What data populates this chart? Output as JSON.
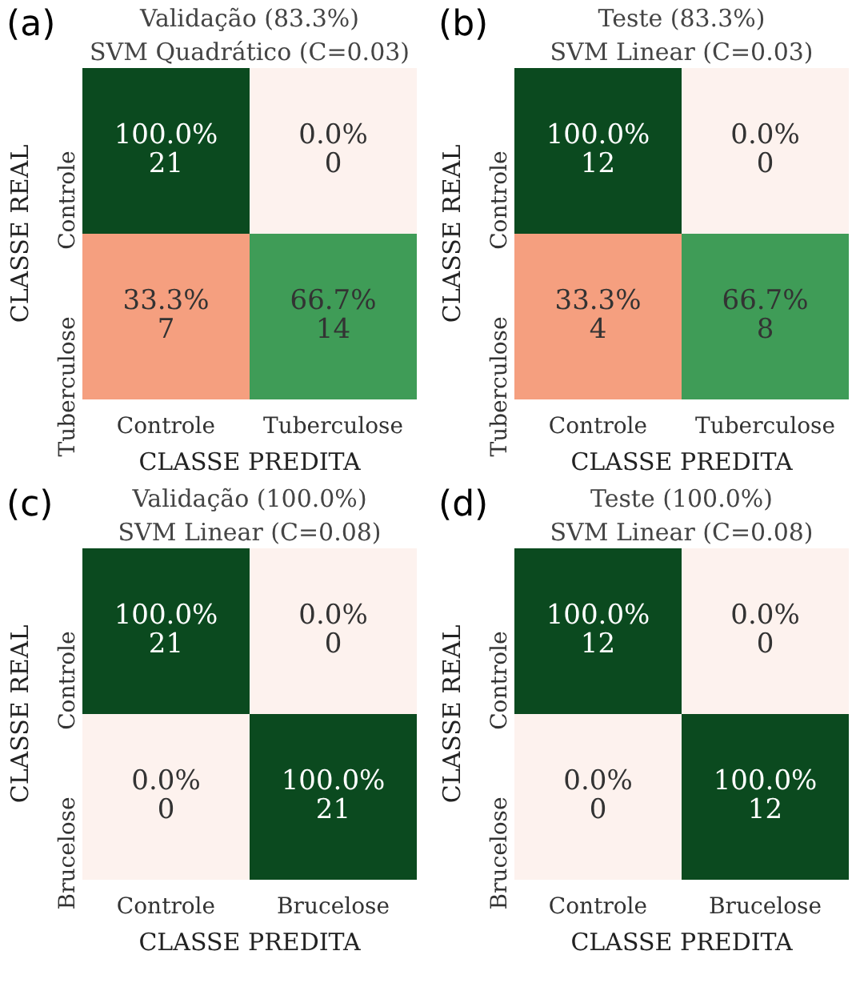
{
  "chart_data": [
    {
      "type": "heatmap",
      "title": "Validação (83.3%)",
      "subtitle": "SVM Quadrático (C=0.03)",
      "xlabel": "CLASSE PREDITA",
      "ylabel": "CLASSE REAL",
      "categories": [
        "Controle",
        "Tuberculose"
      ],
      "y_categories": [
        "Controle",
        "Tuberculose"
      ],
      "cells": [
        [
          100.0,
          0.0
        ],
        [
          33.3,
          66.7
        ]
      ],
      "cell_labels": [
        [
          "100.0%",
          "0.0%"
        ],
        [
          "33.3%",
          "66.7%"
        ]
      ],
      "annotations": [
        "(a)",
        "21",
        "0",
        "7",
        "14"
      ]
    },
    {
      "type": "heatmap",
      "title": "Teste (83.3%)",
      "subtitle": "SVM Linear (C=0.03)",
      "xlabel": "CLASSE PREDITA",
      "ylabel": "CLASSE REAL",
      "categories": [
        "Controle",
        "Tuberculose"
      ],
      "y_categories": [
        "Controle",
        "Tuberculose"
      ],
      "cells": [
        [
          100.0,
          0.0
        ],
        [
          33.3,
          66.7
        ]
      ],
      "cell_labels": [
        [
          "100.0%",
          "0.0%"
        ],
        [
          "33.3%",
          "66.7%"
        ]
      ],
      "annotations": [
        "(b)",
        "12",
        "0",
        "4",
        "8"
      ]
    },
    {
      "type": "heatmap",
      "title": "Validação (100.0%)",
      "subtitle": "SVM Linear (C=0.08)",
      "xlabel": "CLASSE PREDITA",
      "ylabel": "CLASSE REAL",
      "categories": [
        "Controle",
        "Brucelose"
      ],
      "y_categories": [
        "Controle",
        "Brucelose"
      ],
      "cells": [
        [
          100.0,
          0.0
        ],
        [
          0.0,
          100.0
        ]
      ],
      "cell_labels": [
        [
          "100.0%",
          "0.0%"
        ],
        [
          "0.0%",
          "100.0%"
        ]
      ],
      "annotations": [
        "(c)",
        "21",
        "0",
        "0",
        "21"
      ]
    },
    {
      "type": "heatmap",
      "title": "Teste (100.0%)",
      "subtitle": "SVM Linear (C=0.08)",
      "xlabel": "CLASSE PREDITA",
      "ylabel": "CLASSE REAL",
      "categories": [
        "Controle",
        "Brucelose"
      ],
      "y_categories": [
        "Controle",
        "Brucelose"
      ],
      "cells": [
        [
          100.0,
          0.0
        ],
        [
          0.0,
          100.0
        ]
      ],
      "cell_labels": [
        [
          "100.0%",
          "0.0%"
        ],
        [
          "0.0%",
          "100.0%"
        ]
      ],
      "annotations": [
        "(d)",
        "12",
        "0",
        "0",
        "12"
      ]
    }
  ]
}
